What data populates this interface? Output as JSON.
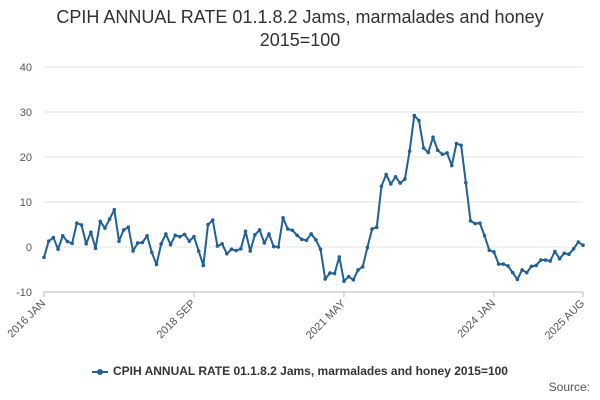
{
  "chart_data": {
    "type": "line",
    "title_line1": "CPIH ANNUAL RATE 01.1.8.2 Jams, marmalades and honey",
    "title_line2": "2015=100",
    "xlabel": "",
    "ylabel": "",
    "ylim": [
      -10,
      40
    ],
    "yticks": [
      -10,
      0,
      10,
      20,
      30,
      40
    ],
    "grid": true,
    "legend_position": "bottom",
    "line_color": "#206095",
    "x_start": "2016 JAN",
    "x_tick_labels": [
      {
        "label": "2016 JAN",
        "index": 0
      },
      {
        "label": "2018 SEP",
        "index": 32
      },
      {
        "label": "2021 MAY",
        "index": 64
      },
      {
        "label": "2024 JAN",
        "index": 96
      },
      {
        "label": "2025 AUG",
        "index": 115
      }
    ],
    "series": [
      {
        "name": "CPIH ANNUAL RATE 01.1.8.2 Jams, marmalades and honey 2015=100",
        "values": [
          -2.3,
          1.3,
          2.1,
          -0.5,
          2.5,
          1.2,
          0.8,
          5.3,
          4.9,
          0.7,
          3.3,
          -0.3,
          5.7,
          4.2,
          6.2,
          8.3,
          1.3,
          3.8,
          4.4,
          -0.9,
          0.9,
          1.0,
          2.5,
          -1.2,
          -3.9,
          0.7,
          2.9,
          0.5,
          2.6,
          2.3,
          2.8,
          1.3,
          2.3,
          -0.9,
          -4.1,
          5.0,
          6.0,
          0.2,
          0.7,
          -1.5,
          -0.5,
          -0.8,
          -0.4,
          3.5,
          -0.9,
          2.7,
          3.8,
          0.9,
          2.9,
          0.1,
          0.0,
          6.5,
          4.0,
          3.7,
          2.6,
          1.7,
          1.5,
          2.9,
          1.6,
          -0.5,
          -7.1,
          -5.8,
          -5.9,
          -2.2,
          -7.6,
          -6.6,
          -7.3,
          -5.1,
          -4.4,
          -0.1,
          4.0,
          4.4,
          13.5,
          16.1,
          14.0,
          15.6,
          14.2,
          15.1,
          21.3,
          29.2,
          28.1,
          22.0,
          21.0,
          24.4,
          21.5,
          20.6,
          20.9,
          18.1,
          23.0,
          22.6,
          14.3,
          5.8,
          5.2,
          5.3,
          2.5,
          -0.7,
          -1.1,
          -3.8,
          -3.8,
          -4.2,
          -5.7,
          -7.2,
          -5.1,
          -5.7,
          -4.3,
          -4.1,
          -2.9,
          -2.9,
          -3.1,
          -1.0,
          -2.6,
          -1.4,
          -1.6,
          -0.4,
          1.1,
          0.4
        ]
      }
    ]
  },
  "legend": {
    "label": "CPIH ANNUAL RATE 01.1.8.2 Jams, marmalades and honey 2015=100"
  },
  "source": {
    "label": "Source:"
  }
}
